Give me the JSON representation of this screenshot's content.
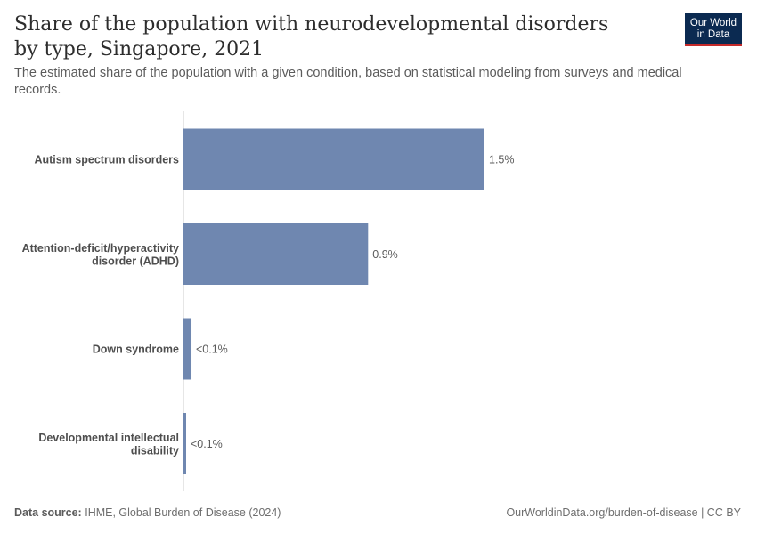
{
  "title": "Share of the population with neurodevelopmental disorders by type, Singapore, 2021",
  "subtitle": "The estimated share of the population with a given condition, based on statistical modeling from surveys and medical records.",
  "logo": {
    "line1": "Our World",
    "line2": "in Data"
  },
  "footer": {
    "source_label": "Data source:",
    "source_text": "IHME, Global Burden of Disease (2024)",
    "right_text": "OurWorldinData.org/burden-of-disease | CC BY"
  },
  "colors": {
    "bar": "#6f87b0",
    "axis": "#cccccc"
  },
  "chart_data": {
    "type": "bar",
    "orientation": "horizontal",
    "categories": [
      [
        "Autism spectrum disorders"
      ],
      [
        "Attention-deficit/hyperactivity",
        "disorder (ADHD)"
      ],
      [
        "Down syndrome"
      ],
      [
        "Developmental intellectual",
        "disability"
      ]
    ],
    "values": [
      1.5,
      0.92,
      0.04,
      0.01
    ],
    "value_labels": [
      "1.5%",
      "0.9%",
      "<0.1%",
      "<0.1%"
    ],
    "unit": "%",
    "xlim": [
      0,
      1.5
    ]
  }
}
